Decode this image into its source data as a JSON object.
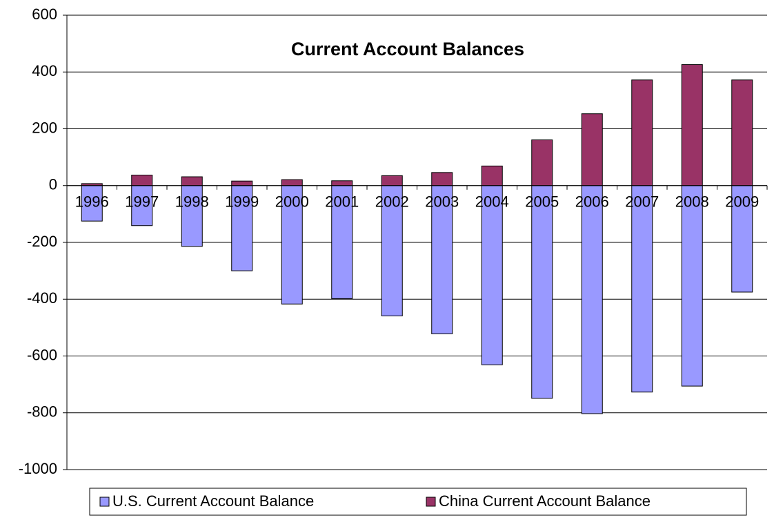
{
  "chart_data": {
    "type": "bar",
    "title": "Current Account Balances",
    "categories": [
      "1996",
      "1997",
      "1998",
      "1999",
      "2000",
      "2001",
      "2002",
      "2003",
      "2004",
      "2005",
      "2006",
      "2007",
      "2008",
      "2009"
    ],
    "series": [
      {
        "name": "U.S. Current Account Balance",
        "color": "#9999ff",
        "values": [
          -125,
          -141,
          -214,
          -300,
          -417,
          -398,
          -459,
          -522,
          -631,
          -749,
          -803,
          -727,
          -706,
          -375
        ]
      },
      {
        "name": "China Current Account Balance",
        "color": "#993366",
        "values": [
          7,
          37,
          31,
          16,
          21,
          17,
          35,
          46,
          69,
          161,
          253,
          372,
          426,
          372
        ]
      }
    ],
    "ylim": [
      -1000,
      600
    ],
    "yticks": [
      -1000,
      -800,
      -600,
      -400,
      -200,
      0,
      200,
      400,
      600
    ],
    "grid": true,
    "legend": "bottom"
  }
}
